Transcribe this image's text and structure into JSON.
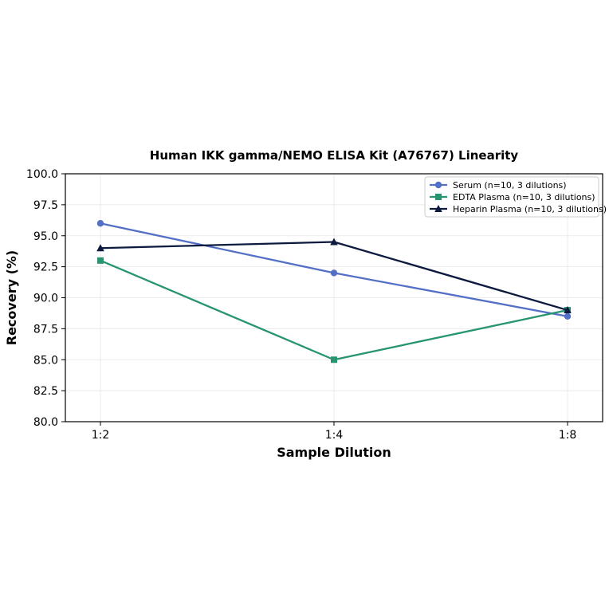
{
  "chart_data": {
    "type": "line",
    "title": "Human IKK gamma/NEMO ELISA Kit (A76767) Linearity",
    "xlabel": "Sample Dilution",
    "ylabel": "Recovery (%)",
    "categories": [
      "1:2",
      "1:4",
      "1:8"
    ],
    "ylim": [
      80.0,
      100.0
    ],
    "yticks": [
      "80.0",
      "82.5",
      "85.0",
      "87.5",
      "90.0",
      "92.5",
      "95.0",
      "97.5",
      "100.0"
    ],
    "grid": true,
    "legend_position": "top-right",
    "series": [
      {
        "name": "Serum (n=10, 3 dilutions)",
        "values": [
          96.0,
          92.0,
          88.5
        ],
        "color": "#5470c6",
        "marker": "circle"
      },
      {
        "name": "EDTA Plasma (n=10, 3 dilutions)",
        "values": [
          93.0,
          85.0,
          89.0
        ],
        "color": "#27956f",
        "marker": "square"
      },
      {
        "name": "Heparin Plasma (n=10, 3 dilutions)",
        "values": [
          94.0,
          94.5,
          89.0
        ],
        "color": "#0c1a3e",
        "marker": "triangle"
      }
    ]
  }
}
